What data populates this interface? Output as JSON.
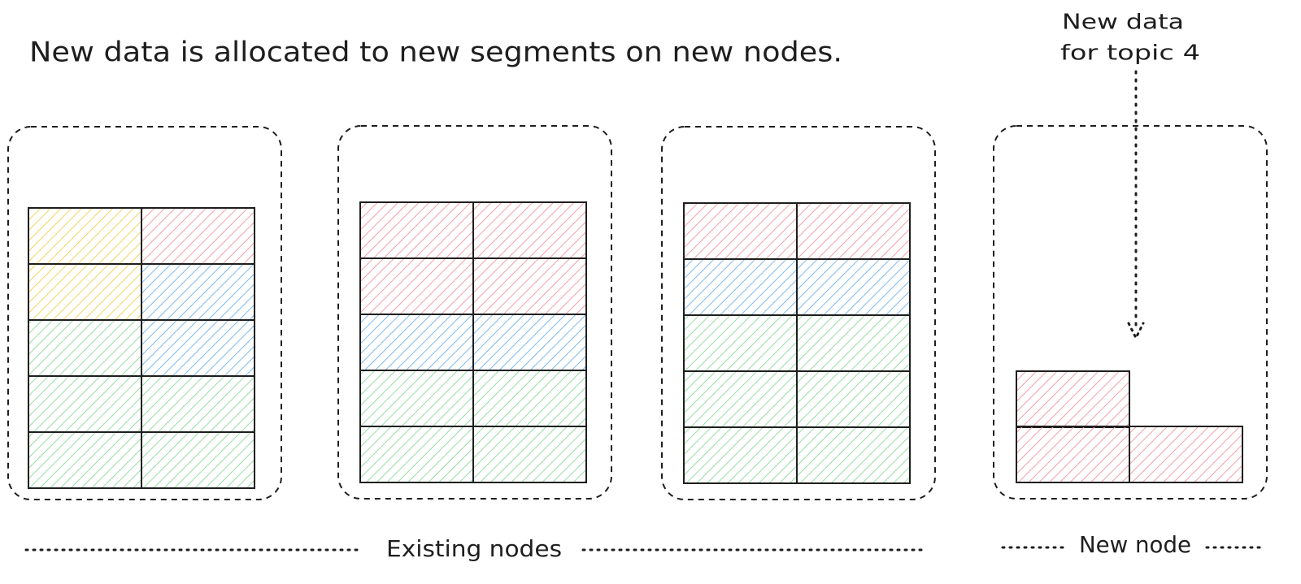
{
  "title": "New data is allocated to new segments on new nodes.",
  "annotation": {
    "lines": [
      "New data",
      "for topic 4"
    ]
  },
  "labels": {
    "existing": "Existing nodes",
    "new": "New node"
  }
}
